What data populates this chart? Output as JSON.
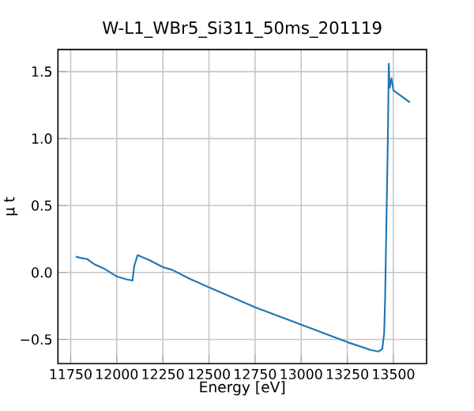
{
  "chart_data": {
    "type": "line",
    "title": "W-L1_WBr5_Si311_50ms_201119",
    "xlabel": "Energy [eV]",
    "ylabel": "μ t",
    "xlim": [
      11681,
      13680
    ],
    "ylim": [
      -0.68,
      1.665
    ],
    "xticks": [
      11750,
      12000,
      12250,
      12500,
      12750,
      13000,
      13250,
      13500
    ],
    "yticks": [
      {
        "value": -0.5,
        "label": "−0.5"
      },
      {
        "value": 0,
        "label": "0.0"
      },
      0.5,
      {
        "value": 1,
        "label": "1.0"
      },
      1.5
    ],
    "grid": true,
    "marker": "none",
    "line_style": "solid",
    "series": [
      {
        "color": "#1f77b4",
        "x": [
          11778,
          11800,
          11840,
          11880,
          11930,
          12000,
          12050,
          12085,
          12095,
          12113,
          12180,
          12250,
          12300,
          12400,
          12500,
          12750,
          13000,
          13250,
          13380,
          13420,
          13440,
          13450,
          13455,
          13460,
          13470,
          13475,
          13480,
          13490,
          13500,
          13540,
          13590
        ],
        "values": [
          0.12,
          0.11,
          0.1,
          0.06,
          0.03,
          -0.03,
          -0.05,
          -0.06,
          0.05,
          0.13,
          0.09,
          0.04,
          0.02,
          -0.05,
          -0.11,
          -0.26,
          -0.39,
          -0.52,
          -0.58,
          -0.59,
          -0.57,
          -0.45,
          -0.2,
          0.2,
          1.0,
          1.56,
          1.38,
          1.45,
          1.36,
          1.32,
          1.27
        ]
      }
    ]
  }
}
